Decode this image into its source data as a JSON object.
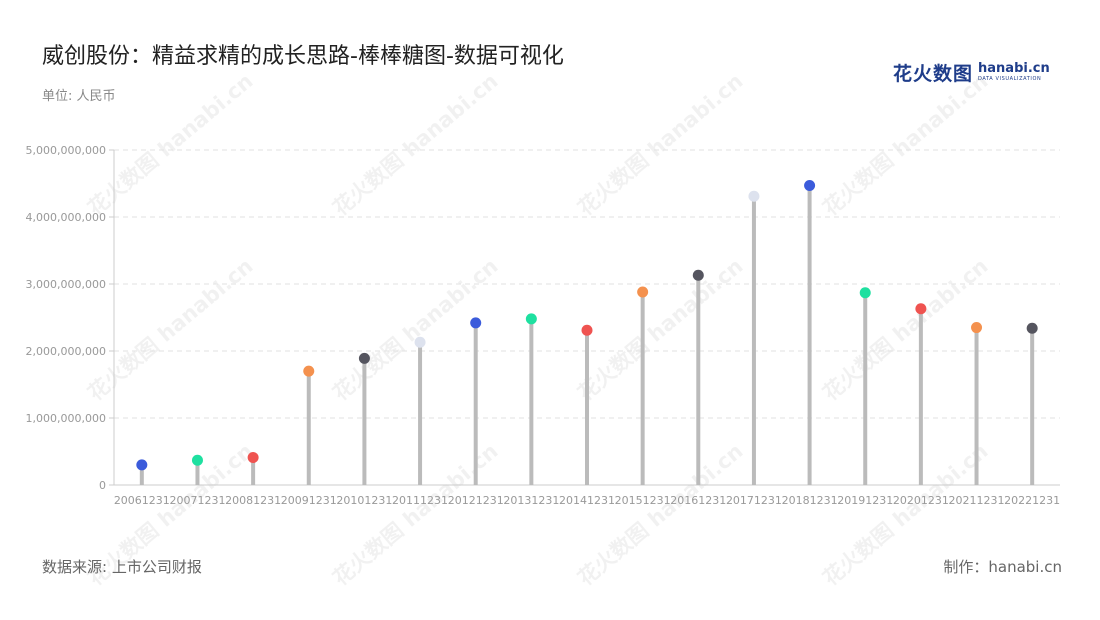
{
  "header": {
    "title": "威创股份：精益求精的成长思路-棒棒糖图-数据可视化",
    "unit_label": "单位: 人民币"
  },
  "brand": {
    "name_cn": "花火数图",
    "name_en": "hanabi.cn",
    "tagline": "DATA VISUALIZATION"
  },
  "watermark_text": "花火数图 hanabi.cn",
  "footer": {
    "source": "数据来源: 上市公司财报",
    "maker": "制作：hanabi.cn"
  },
  "chart_data": {
    "type": "lollipop",
    "categories": [
      "20061231",
      "20071231",
      "20081231",
      "20091231",
      "20101231",
      "20111231",
      "20121231",
      "20131231",
      "20141231",
      "20151231",
      "20161231",
      "20171231",
      "20181231",
      "20191231",
      "20201231",
      "20211231",
      "20221231"
    ],
    "values": [
      300000000,
      370000000,
      410000000,
      1700000000,
      1890000000,
      2130000000,
      2420000000,
      2480000000,
      2310000000,
      2880000000,
      3130000000,
      4310000000,
      4470000000,
      2870000000,
      2630000000,
      2350000000,
      2340000000
    ],
    "ylim": [
      0,
      5000000000
    ],
    "y_ticks": [
      0,
      1000000000,
      2000000000,
      3000000000,
      4000000000,
      5000000000
    ],
    "y_tick_labels": [
      "0",
      "1,000,000,000",
      "2,000,000,000",
      "3,000,000,000",
      "4,000,000,000",
      "5,000,000,000"
    ],
    "grid": true,
    "stem_color": "#bbbbbb",
    "dot_colors": [
      "#3b5bdb",
      "#1ee0a0",
      "#ef5350",
      "#f4914e",
      "#55555f",
      "#dde2ee"
    ]
  }
}
